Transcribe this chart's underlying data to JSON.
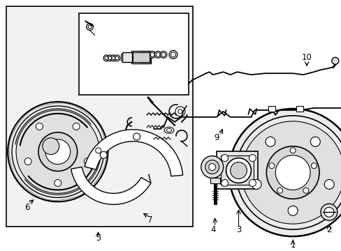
{
  "background_color": "#ffffff",
  "line_color": "#000000",
  "label_color": "#000000",
  "font_size": 8.5,
  "fig_w": 4.89,
  "fig_h": 3.6,
  "dpi": 100
}
